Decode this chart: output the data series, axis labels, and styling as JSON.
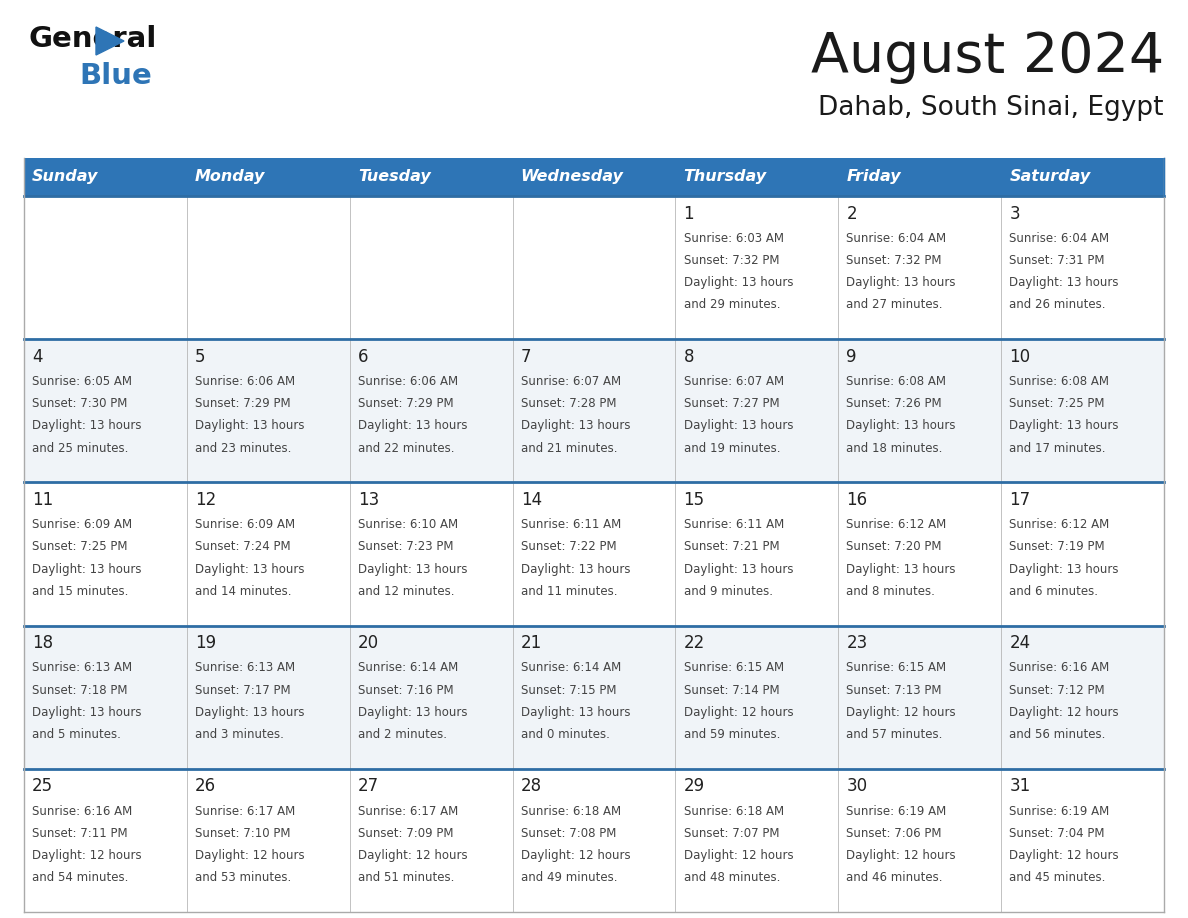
{
  "title": "August 2024",
  "subtitle": "Dahab, South Sinai, Egypt",
  "header_bg": "#2E75B6",
  "header_text_color": "#FFFFFF",
  "day_names": [
    "Sunday",
    "Monday",
    "Tuesday",
    "Wednesday",
    "Thursday",
    "Friday",
    "Saturday"
  ],
  "row_bg_even": "#FFFFFF",
  "row_bg_odd": "#F0F4F8",
  "cell_border_color": "#AAAAAA",
  "week_separator_color": "#2E6DA4",
  "text_color": "#444444",
  "day_num_color": "#222222",
  "logo_black": "#111111",
  "logo_blue": "#2E75B6",
  "calendar_data": [
    [
      {
        "day": "",
        "sunrise": "",
        "sunset": "",
        "daylight": ""
      },
      {
        "day": "",
        "sunrise": "",
        "sunset": "",
        "daylight": ""
      },
      {
        "day": "",
        "sunrise": "",
        "sunset": "",
        "daylight": ""
      },
      {
        "day": "",
        "sunrise": "",
        "sunset": "",
        "daylight": ""
      },
      {
        "day": "1",
        "sunrise": "6:03 AM",
        "sunset": "7:32 PM",
        "daylight": "13 hours",
        "daylight2": "and 29 minutes."
      },
      {
        "day": "2",
        "sunrise": "6:04 AM",
        "sunset": "7:32 PM",
        "daylight": "13 hours",
        "daylight2": "and 27 minutes."
      },
      {
        "day": "3",
        "sunrise": "6:04 AM",
        "sunset": "7:31 PM",
        "daylight": "13 hours",
        "daylight2": "and 26 minutes."
      }
    ],
    [
      {
        "day": "4",
        "sunrise": "6:05 AM",
        "sunset": "7:30 PM",
        "daylight": "13 hours",
        "daylight2": "and 25 minutes."
      },
      {
        "day": "5",
        "sunrise": "6:06 AM",
        "sunset": "7:29 PM",
        "daylight": "13 hours",
        "daylight2": "and 23 minutes."
      },
      {
        "day": "6",
        "sunrise": "6:06 AM",
        "sunset": "7:29 PM",
        "daylight": "13 hours",
        "daylight2": "and 22 minutes."
      },
      {
        "day": "7",
        "sunrise": "6:07 AM",
        "sunset": "7:28 PM",
        "daylight": "13 hours",
        "daylight2": "and 21 minutes."
      },
      {
        "day": "8",
        "sunrise": "6:07 AM",
        "sunset": "7:27 PM",
        "daylight": "13 hours",
        "daylight2": "and 19 minutes."
      },
      {
        "day": "9",
        "sunrise": "6:08 AM",
        "sunset": "7:26 PM",
        "daylight": "13 hours",
        "daylight2": "and 18 minutes."
      },
      {
        "day": "10",
        "sunrise": "6:08 AM",
        "sunset": "7:25 PM",
        "daylight": "13 hours",
        "daylight2": "and 17 minutes."
      }
    ],
    [
      {
        "day": "11",
        "sunrise": "6:09 AM",
        "sunset": "7:25 PM",
        "daylight": "13 hours",
        "daylight2": "and 15 minutes."
      },
      {
        "day": "12",
        "sunrise": "6:09 AM",
        "sunset": "7:24 PM",
        "daylight": "13 hours",
        "daylight2": "and 14 minutes."
      },
      {
        "day": "13",
        "sunrise": "6:10 AM",
        "sunset": "7:23 PM",
        "daylight": "13 hours",
        "daylight2": "and 12 minutes."
      },
      {
        "day": "14",
        "sunrise": "6:11 AM",
        "sunset": "7:22 PM",
        "daylight": "13 hours",
        "daylight2": "and 11 minutes."
      },
      {
        "day": "15",
        "sunrise": "6:11 AM",
        "sunset": "7:21 PM",
        "daylight": "13 hours",
        "daylight2": "and 9 minutes."
      },
      {
        "day": "16",
        "sunrise": "6:12 AM",
        "sunset": "7:20 PM",
        "daylight": "13 hours",
        "daylight2": "and 8 minutes."
      },
      {
        "day": "17",
        "sunrise": "6:12 AM",
        "sunset": "7:19 PM",
        "daylight": "13 hours",
        "daylight2": "and 6 minutes."
      }
    ],
    [
      {
        "day": "18",
        "sunrise": "6:13 AM",
        "sunset": "7:18 PM",
        "daylight": "13 hours",
        "daylight2": "and 5 minutes."
      },
      {
        "day": "19",
        "sunrise": "6:13 AM",
        "sunset": "7:17 PM",
        "daylight": "13 hours",
        "daylight2": "and 3 minutes."
      },
      {
        "day": "20",
        "sunrise": "6:14 AM",
        "sunset": "7:16 PM",
        "daylight": "13 hours",
        "daylight2": "and 2 minutes."
      },
      {
        "day": "21",
        "sunrise": "6:14 AM",
        "sunset": "7:15 PM",
        "daylight": "13 hours",
        "daylight2": "and 0 minutes."
      },
      {
        "day": "22",
        "sunrise": "6:15 AM",
        "sunset": "7:14 PM",
        "daylight": "12 hours",
        "daylight2": "and 59 minutes."
      },
      {
        "day": "23",
        "sunrise": "6:15 AM",
        "sunset": "7:13 PM",
        "daylight": "12 hours",
        "daylight2": "and 57 minutes."
      },
      {
        "day": "24",
        "sunrise": "6:16 AM",
        "sunset": "7:12 PM",
        "daylight": "12 hours",
        "daylight2": "and 56 minutes."
      }
    ],
    [
      {
        "day": "25",
        "sunrise": "6:16 AM",
        "sunset": "7:11 PM",
        "daylight": "12 hours",
        "daylight2": "and 54 minutes."
      },
      {
        "day": "26",
        "sunrise": "6:17 AM",
        "sunset": "7:10 PM",
        "daylight": "12 hours",
        "daylight2": "and 53 minutes."
      },
      {
        "day": "27",
        "sunrise": "6:17 AM",
        "sunset": "7:09 PM",
        "daylight": "12 hours",
        "daylight2": "and 51 minutes."
      },
      {
        "day": "28",
        "sunrise": "6:18 AM",
        "sunset": "7:08 PM",
        "daylight": "12 hours",
        "daylight2": "and 49 minutes."
      },
      {
        "day": "29",
        "sunrise": "6:18 AM",
        "sunset": "7:07 PM",
        "daylight": "12 hours",
        "daylight2": "and 48 minutes."
      },
      {
        "day": "30",
        "sunrise": "6:19 AM",
        "sunset": "7:06 PM",
        "daylight": "12 hours",
        "daylight2": "and 46 minutes."
      },
      {
        "day": "31",
        "sunrise": "6:19 AM",
        "sunset": "7:04 PM",
        "daylight": "12 hours",
        "daylight2": "and 45 minutes."
      }
    ]
  ]
}
